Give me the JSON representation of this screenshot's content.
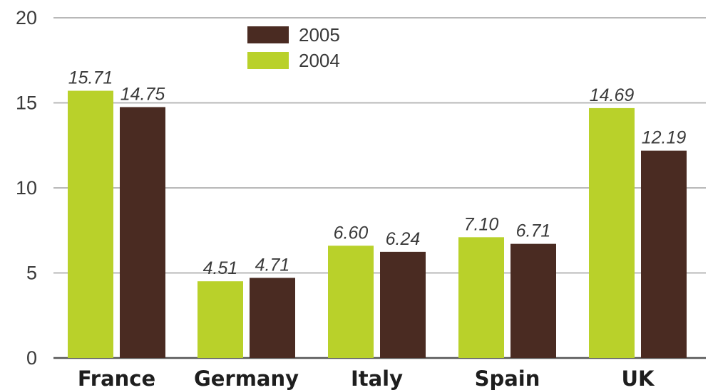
{
  "chart_data": {
    "type": "bar",
    "categories": [
      "France",
      "Germany",
      "Italy",
      "Spain",
      "UK"
    ],
    "series": [
      {
        "name": "2004",
        "color": "#b9d12a",
        "values": [
          15.71,
          4.51,
          6.6,
          7.1,
          14.69
        ],
        "labels": [
          "15.71",
          "4.51",
          "6.60",
          "7.10",
          "14.69"
        ]
      },
      {
        "name": "2005",
        "color": "#4a2b22",
        "values": [
          14.75,
          4.71,
          6.24,
          6.71,
          12.19
        ],
        "labels": [
          "14.75",
          "4.71",
          "6.24",
          "6.71",
          "12.19"
        ]
      }
    ],
    "legend_order": [
      "2005",
      "2004"
    ],
    "legend_position": "top-left",
    "ylim": [
      0,
      20
    ],
    "yticks": [
      0,
      5,
      10,
      15,
      20
    ],
    "grid": true,
    "title": "",
    "xlabel": "",
    "ylabel": ""
  }
}
